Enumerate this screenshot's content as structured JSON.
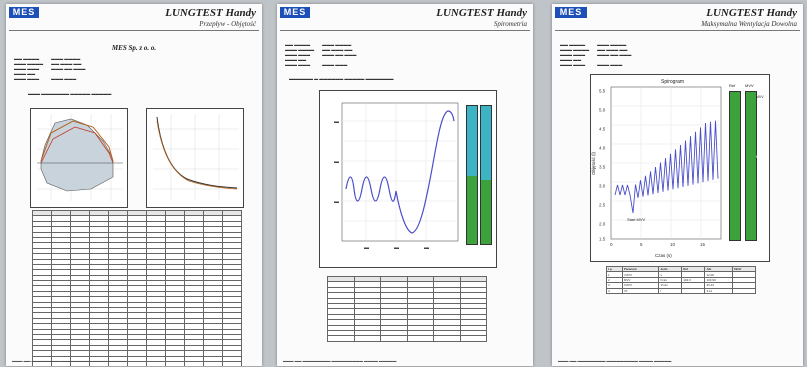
{
  "pages": [
    {
      "logo": "MES",
      "brand": "LUNGTEST Handy",
      "subtitle": "Przepływ - Objętość",
      "company": "MES Sp. z o. o."
    },
    {
      "logo": "MES",
      "brand": "LUNGTEST Handy",
      "subtitle": "Spirometria"
    },
    {
      "logo": "MES",
      "brand": "LUNGTEST Handy",
      "subtitle": "Maksymalna Wentylacja Dowolna",
      "chart_title": "Spirogram",
      "chart_xlabel": "Czas (s)",
      "chart_ylabel": "Objętość (l)",
      "x_ticks": [
        "0",
        "5",
        "10",
        "15"
      ],
      "y_ticks": [
        "5.5",
        "5.0",
        "4.5",
        "4.0",
        "3.5",
        "3.0",
        "2.5",
        "2.0",
        "1.5"
      ],
      "annotation": "Start MVV",
      "bar_labels": [
        "Ref",
        "MVV"
      ],
      "bar_value_labels": [
        "MVV",
        "MVV"
      ],
      "table_headers": [
        "Lp.",
        "Parametr",
        "Jedn",
        "Ref",
        "Akt",
        "%Ref"
      ],
      "table_rows": [
        [
          "1",
          "t MVV",
          "s",
          "",
          "12.00",
          ""
        ],
        [
          "2",
          "MVV",
          "l/min",
          "102.0",
          "103.90",
          ""
        ],
        [
          "3",
          "f MVV",
          "1/min",
          "",
          "33.43",
          ""
        ],
        [
          "4",
          "VT",
          "l",
          "",
          "3.11",
          ""
        ]
      ]
    }
  ]
}
